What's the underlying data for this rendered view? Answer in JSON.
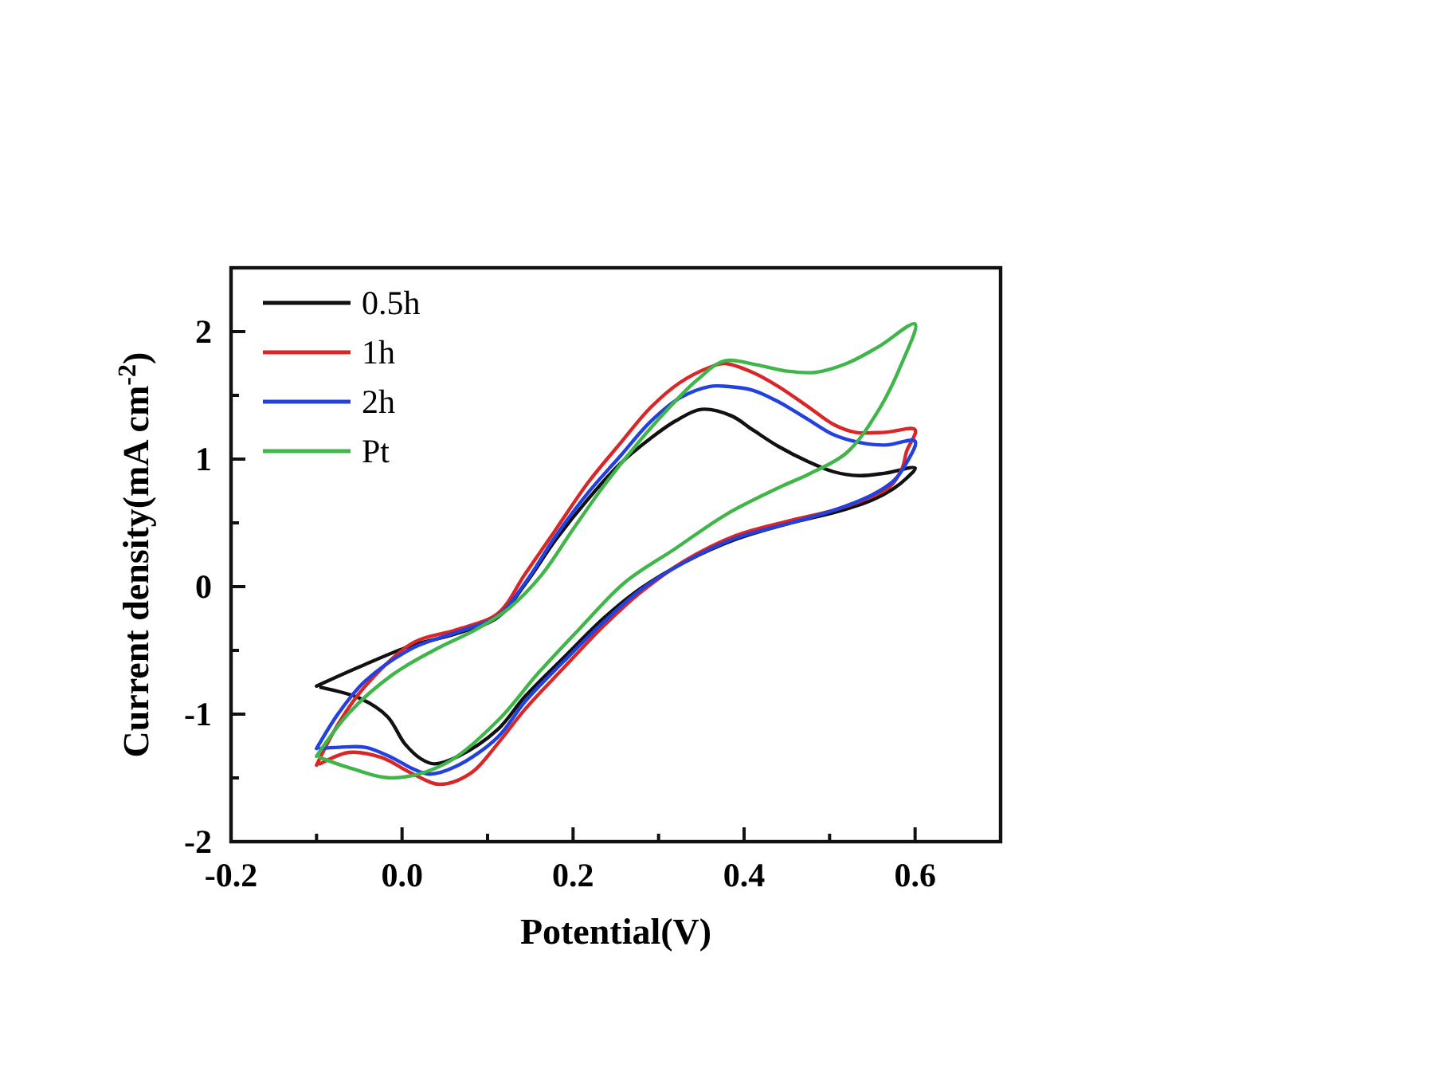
{
  "chart_data": {
    "type": "line",
    "xlabel": "Potential(V)",
    "ylabel": "Current density(mA cm$^{-2}$)",
    "xlim": [
      -0.2,
      0.7
    ],
    "ylim": [
      -2,
      2.5
    ],
    "xticks": [
      -0.2,
      {
        "value": -0.1,
        "label": null
      },
      {
        "value": 0,
        "label": "0.0"
      },
      {
        "value": 0.1,
        "label": null
      },
      0.2,
      {
        "value": 0.3,
        "label": null
      },
      0.4,
      {
        "value": 0.5,
        "label": null
      },
      0.6
    ],
    "yticks": [
      -2,
      {
        "value": -1.5,
        "label": null
      },
      -1,
      {
        "value": -0.5,
        "label": null
      },
      0,
      {
        "value": 0.5,
        "label": null
      },
      1,
      {
        "value": 1.5,
        "label": null
      },
      2
    ],
    "legend": "top left",
    "line_style": "solid",
    "series": [
      {
        "name": "0.5h",
        "color": "#111111",
        "x": [
          -0.1,
          -0.05,
          0.012,
          0.063,
          0.112,
          0.144,
          0.18,
          0.218,
          0.256,
          0.29,
          0.32,
          0.35,
          0.385,
          0.41,
          0.44,
          0.475,
          0.505,
          0.535,
          0.565,
          0.6,
          0.59,
          0.575,
          0.55,
          0.51,
          0.455,
          0.39,
          0.33,
          0.28,
          0.237,
          0.19,
          0.144,
          0.112,
          0.066,
          0.038,
          0.022,
          0.003,
          -0.017,
          -0.048,
          -0.095
        ],
        "values": [
          -0.78,
          -0.63,
          -0.46,
          -0.37,
          -0.24,
          0.02,
          0.37,
          0.69,
          0.97,
          1.16,
          1.3,
          1.39,
          1.34,
          1.23,
          1.1,
          0.98,
          0.9,
          0.87,
          0.89,
          0.93,
          0.85,
          0.77,
          0.68,
          0.59,
          0.5,
          0.37,
          0.19,
          -0.01,
          -0.24,
          -0.55,
          -0.86,
          -1.12,
          -1.33,
          -1.39,
          -1.35,
          -1.23,
          -1.02,
          -0.88,
          -0.79
        ]
      },
      {
        "name": "1h",
        "color": "#d92626",
        "x": [
          -0.1,
          -0.074,
          -0.043,
          0.013,
          0.063,
          0.112,
          0.144,
          0.18,
          0.218,
          0.256,
          0.29,
          0.325,
          0.36,
          0.377,
          0.41,
          0.44,
          0.475,
          0.505,
          0.53,
          0.565,
          0.6,
          0.59,
          0.585,
          0.57,
          0.54,
          0.505,
          0.455,
          0.39,
          0.33,
          0.28,
          0.237,
          0.19,
          0.144,
          0.112,
          0.081,
          0.044,
          0.013,
          -0.024,
          -0.062,
          -0.096
        ],
        "values": [
          -1.4,
          -1.07,
          -0.78,
          -0.44,
          -0.34,
          -0.21,
          0.1,
          0.45,
          0.82,
          1.13,
          1.4,
          1.6,
          1.72,
          1.75,
          1.68,
          1.57,
          1.41,
          1.27,
          1.21,
          1.21,
          1.23,
          1.06,
          0.93,
          0.78,
          0.68,
          0.6,
          0.52,
          0.4,
          0.2,
          -0.04,
          -0.3,
          -0.63,
          -0.96,
          -1.23,
          -1.46,
          -1.55,
          -1.47,
          -1.34,
          -1.3,
          -1.39
        ]
      },
      {
        "name": "2h",
        "color": "#2341de",
        "x": [
          -0.1,
          -0.074,
          -0.043,
          0.013,
          0.063,
          0.112,
          0.144,
          0.18,
          0.218,
          0.256,
          0.29,
          0.325,
          0.36,
          0.38,
          0.41,
          0.44,
          0.475,
          0.505,
          0.535,
          0.565,
          0.6,
          0.59,
          0.575,
          0.55,
          0.51,
          0.455,
          0.39,
          0.33,
          0.28,
          0.237,
          0.19,
          0.144,
          0.112,
          0.063,
          0.032,
          0.013,
          -0.012,
          -0.043,
          -0.074,
          -0.096
        ],
        "values": [
          -1.27,
          -0.99,
          -0.74,
          -0.48,
          -0.36,
          -0.23,
          0.03,
          0.4,
          0.74,
          1.03,
          1.29,
          1.48,
          1.57,
          1.57,
          1.54,
          1.45,
          1.31,
          1.19,
          1.13,
          1.11,
          1.14,
          0.97,
          0.83,
          0.72,
          0.61,
          0.5,
          0.38,
          0.19,
          -0.02,
          -0.27,
          -0.58,
          -0.9,
          -1.18,
          -1.41,
          -1.47,
          -1.43,
          -1.34,
          -1.26,
          -1.26,
          -1.27
        ]
      },
      {
        "name": "Pt",
        "color": "#3fb54a",
        "x": [
          -0.1,
          -0.062,
          -0.011,
          0.037,
          0.088,
          0.125,
          0.163,
          0.2,
          0.237,
          0.275,
          0.312,
          0.345,
          0.377,
          0.414,
          0.45,
          0.483,
          0.52,
          0.557,
          0.6,
          0.585,
          0.557,
          0.52,
          0.475,
          0.445,
          0.38,
          0.32,
          0.26,
          0.209,
          0.159,
          0.112,
          0.05,
          -0.011,
          -0.062,
          -0.096
        ],
        "values": [
          -1.33,
          -0.99,
          -0.69,
          -0.5,
          -0.33,
          -0.17,
          0.09,
          0.45,
          0.8,
          1.12,
          1.4,
          1.62,
          1.77,
          1.74,
          1.69,
          1.68,
          1.75,
          1.88,
          2.06,
          1.76,
          1.38,
          1.05,
          0.88,
          0.79,
          0.57,
          0.3,
          0.03,
          -0.32,
          -0.68,
          -1.05,
          -1.39,
          -1.5,
          -1.42,
          -1.34
        ]
      }
    ]
  }
}
